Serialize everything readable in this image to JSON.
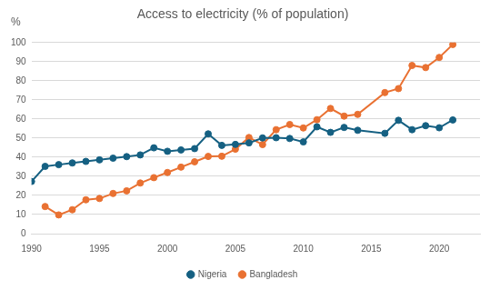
{
  "chart_data": {
    "type": "line",
    "title": "Access to electricity (% of population)",
    "y_label": "%",
    "xlim": [
      1990,
      2023
    ],
    "xticks": [
      1990,
      1995,
      2000,
      2005,
      2010,
      2015,
      2020
    ],
    "ylim": [
      0,
      100
    ],
    "yticks": [
      0,
      10,
      20,
      30,
      40,
      50,
      60,
      70,
      80,
      90,
      100
    ],
    "grid": true,
    "legend": "bottom",
    "marker": "circle",
    "series": [
      {
        "name": "Nigeria",
        "color": "#156082",
        "x": [
          1990,
          1991,
          1992,
          1993,
          1994,
          1995,
          1996,
          1997,
          1998,
          1999,
          2000,
          2001,
          2002,
          2003,
          2004,
          2005,
          2006,
          2007,
          2008,
          2009,
          2010,
          2011,
          2012,
          2013,
          2014,
          2016,
          2017,
          2018,
          2019,
          2020,
          2021
        ],
        "values": [
          27.3,
          35.2,
          36.1,
          37,
          37.8,
          38.6,
          39.5,
          40.3,
          41.2,
          44.9,
          43.1,
          43.8,
          44.5,
          52.2,
          46.2,
          46.7,
          47.5,
          50.1,
          50.2,
          49.8,
          48,
          55.9,
          53,
          55.6,
          54.1,
          52.5,
          59.3,
          54.4,
          56.5,
          55.4,
          59.5
        ]
      },
      {
        "name": "Bangladesh",
        "color": "#e97132",
        "x": [
          1991,
          1992,
          1993,
          1994,
          1995,
          1996,
          1997,
          1998,
          1999,
          2000,
          2001,
          2002,
          2003,
          2004,
          2005,
          2006,
          2007,
          2008,
          2009,
          2010,
          2011,
          2012,
          2013,
          2014,
          2016,
          2017,
          2018,
          2019,
          2020,
          2021
        ],
        "values": [
          14.2,
          9.8,
          12.5,
          17.7,
          18.4,
          21,
          22.4,
          26.5,
          29.3,
          32,
          34.8,
          37.6,
          40.4,
          40.5,
          44.2,
          50.3,
          46.6,
          54.4,
          57.1,
          55.3,
          59.6,
          65.5,
          61.5,
          62.4,
          73.8,
          75.9,
          88,
          86.9,
          92.2,
          99
        ]
      }
    ]
  }
}
